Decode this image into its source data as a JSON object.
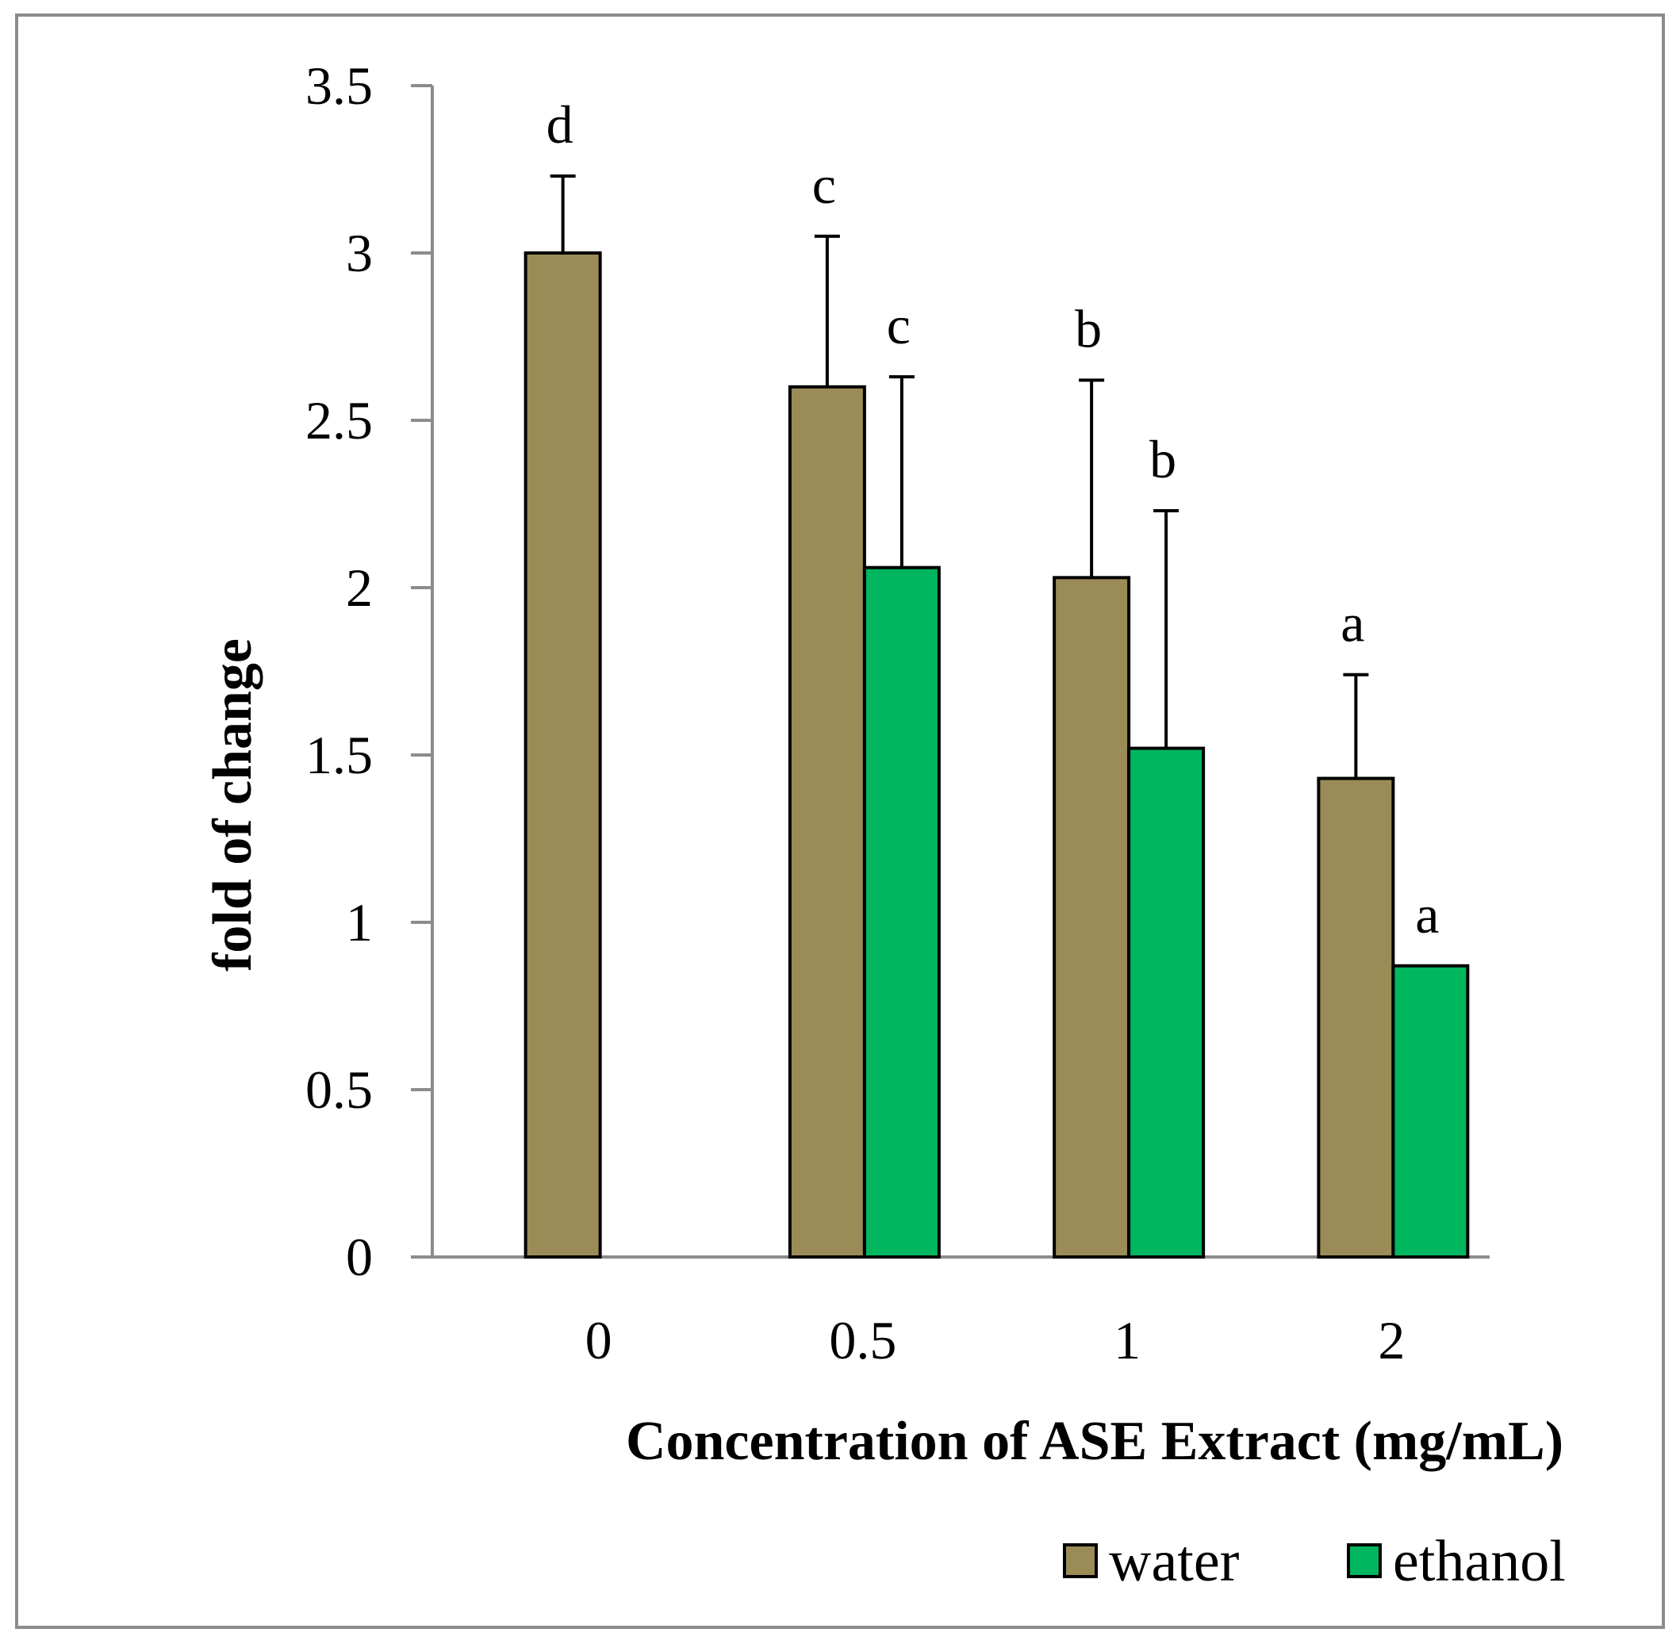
{
  "chart_data": {
    "type": "bar",
    "categories": [
      "0",
      "0.5",
      "1",
      "2"
    ],
    "series": [
      {
        "name": "water",
        "color": "#9a8b57",
        "values": [
          3.0,
          2.6,
          2.03,
          1.43
        ],
        "errors": [
          0.23,
          0.45,
          0.59,
          0.31
        ],
        "labels": [
          "d",
          "c",
          "b",
          "a"
        ]
      },
      {
        "name": "ethanol",
        "color": "#00b65e",
        "values": [
          null,
          2.06,
          1.52,
          0.87
        ],
        "errors": [
          null,
          0.57,
          0.71,
          null
        ],
        "labels": [
          null,
          "c",
          "b",
          "a"
        ]
      }
    ],
    "title": "",
    "xlabel": "Concentration of ASE Extract (mg/mL)",
    "ylabel": "fold of change",
    "ylim": [
      0,
      3.5
    ],
    "yticks": [
      "0",
      "0.5",
      "1",
      "1.5",
      "2",
      "2.5",
      "3",
      "3.5"
    ],
    "grid": false,
    "legend": "bottom-right"
  }
}
